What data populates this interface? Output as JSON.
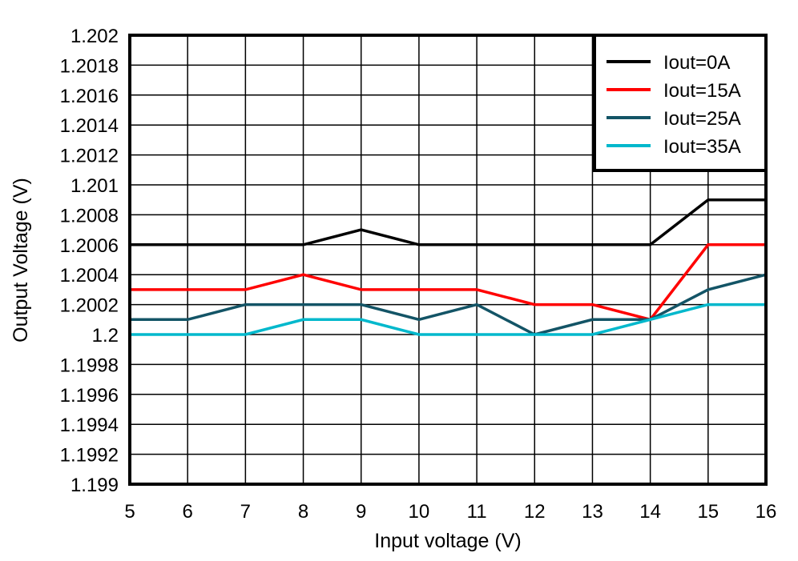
{
  "chart_data": {
    "type": "line",
    "title": "",
    "xlabel": "Input voltage (V)",
    "ylabel": "Output Voltage (V)",
    "x": [
      5,
      6,
      7,
      8,
      9,
      10,
      11,
      12,
      13,
      14,
      15,
      16
    ],
    "xlim": [
      5,
      16
    ],
    "ylim": [
      1.199,
      1.202
    ],
    "x_ticks": [
      "5",
      "6",
      "7",
      "8",
      "9",
      "10",
      "11",
      "12",
      "13",
      "14",
      "15",
      "16"
    ],
    "y_ticks": [
      "1.199",
      "1.1992",
      "1.1994",
      "1.1996",
      "1.1998",
      "1.2",
      "1.2002",
      "1.2004",
      "1.2006",
      "1.2008",
      "1.201",
      "1.2012",
      "1.2014",
      "1.2016",
      "1.2018",
      "1.202"
    ],
    "grid": true,
    "legend_position": "upper right",
    "series": [
      {
        "name": "Iout=0A",
        "color": "#000000",
        "values": [
          1.2006,
          1.2006,
          1.2006,
          1.2006,
          1.2007,
          1.2006,
          1.2006,
          1.2006,
          1.2006,
          1.2006,
          1.2009,
          1.2009
        ]
      },
      {
        "name": "Iout=15A",
        "color": "#ff0000",
        "values": [
          1.2003,
          1.2003,
          1.2003,
          1.2004,
          1.2003,
          1.2003,
          1.2003,
          1.2002,
          1.2002,
          1.2001,
          1.2006,
          1.2006
        ]
      },
      {
        "name": "Iout=25A",
        "color": "#135466",
        "values": [
          1.2001,
          1.2001,
          1.2002,
          1.2002,
          1.2002,
          1.2001,
          1.2002,
          1.2,
          1.2001,
          1.2001,
          1.2003,
          1.2004
        ]
      },
      {
        "name": "Iout=35A",
        "color": "#00b8cc",
        "values": [
          1.2,
          1.2,
          1.2,
          1.2001,
          1.2001,
          1.2,
          1.2,
          1.2,
          1.2,
          1.2001,
          1.2002,
          1.2002
        ]
      }
    ]
  }
}
